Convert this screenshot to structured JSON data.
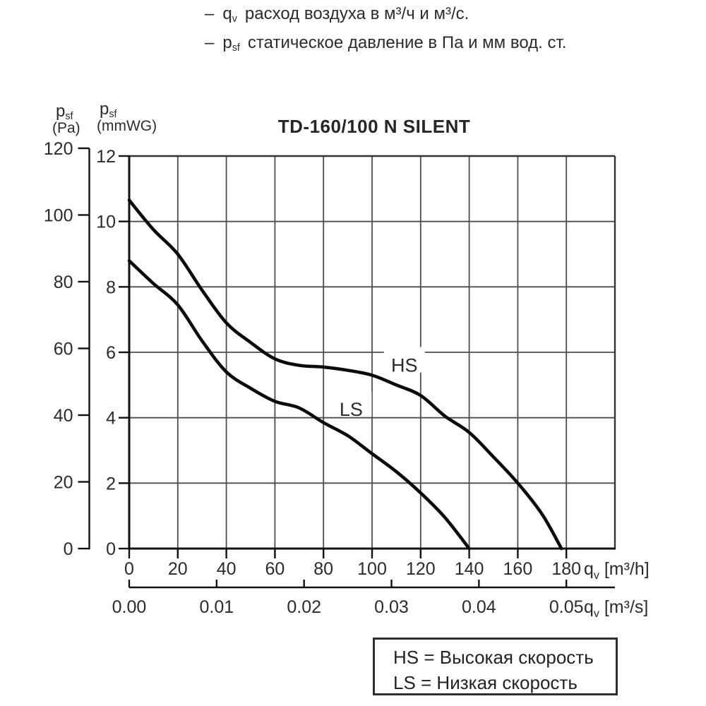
{
  "colors": {
    "background": "#ffffff",
    "text": "#2b2b2b",
    "curve": "#0b0b0b",
    "grid": "#4d4d4d",
    "border": "#333333",
    "axis": "#111111"
  },
  "bullets": [
    {
      "dash": "–",
      "sym": "q",
      "sub": "v",
      "text": "расход воздуха в м³/ч и м³/с."
    },
    {
      "dash": "–",
      "sym": "p",
      "sub": "sf",
      "text": "статическое давление в Па и мм вод. ст."
    }
  ],
  "axis_headers": {
    "pa_sym": "p",
    "pa_sub": "sf",
    "pa_unit": "(Pa)",
    "mmwg_sym": "p",
    "mmwg_sub": "sf",
    "mmwg_unit": "(mmWG)"
  },
  "chart_data": {
    "type": "line",
    "title": "TD-160/100 N SILENT",
    "grid": true,
    "x_axis_primary": {
      "unit_pre": "q",
      "unit_sub": "v",
      "unit_post": " [m³/h]",
      "ticks": [
        0,
        20,
        40,
        60,
        80,
        100,
        120,
        140,
        160,
        180
      ],
      "range": [
        0,
        200
      ]
    },
    "x_axis_secondary": {
      "unit_pre": "q",
      "unit_sub": "v",
      "unit_post": " [m³/s]",
      "ticks": [
        "0.00",
        "0.01",
        "0.02",
        "0.03",
        "0.04",
        "0.05"
      ],
      "range": [
        0,
        0.0556
      ]
    },
    "y_axis_primary": {
      "name": "psf (mmWG)",
      "ticks": [
        12,
        10,
        8,
        6,
        4,
        2,
        0
      ],
      "range": [
        0,
        12
      ]
    },
    "y_axis_secondary": {
      "name": "psf (Pa)",
      "ticks": [
        120,
        100,
        80,
        60,
        40,
        20,
        0
      ],
      "range": [
        0,
        120
      ]
    },
    "series": [
      {
        "name": "HS",
        "label_at": [
          113.3,
          5.6
        ],
        "points": [
          [
            0,
            10.65
          ],
          [
            10,
            9.75
          ],
          [
            20,
            9.0
          ],
          [
            30,
            7.9
          ],
          [
            40,
            6.9
          ],
          [
            50,
            6.3
          ],
          [
            60,
            5.8
          ],
          [
            70,
            5.6
          ],
          [
            80,
            5.55
          ],
          [
            90,
            5.45
          ],
          [
            100,
            5.3
          ],
          [
            110,
            5.0
          ],
          [
            120,
            4.68
          ],
          [
            130,
            4.05
          ],
          [
            140,
            3.55
          ],
          [
            150,
            2.8
          ],
          [
            160,
            2.0
          ],
          [
            170,
            1.05
          ],
          [
            178,
            0
          ]
        ]
      },
      {
        "name": "LS",
        "label_at": [
          91.4,
          4.25
        ],
        "points": [
          [
            0,
            8.8
          ],
          [
            10,
            8.1
          ],
          [
            20,
            7.45
          ],
          [
            30,
            6.35
          ],
          [
            40,
            5.4
          ],
          [
            50,
            4.9
          ],
          [
            60,
            4.5
          ],
          [
            70,
            4.3
          ],
          [
            80,
            3.85
          ],
          [
            90,
            3.45
          ],
          [
            100,
            2.9
          ],
          [
            110,
            2.35
          ],
          [
            120,
            1.7
          ],
          [
            130,
            0.95
          ],
          [
            140,
            0
          ]
        ]
      }
    ]
  },
  "legend": {
    "items": [
      "HS = Высокая скорость",
      "LS = Низкая скорость"
    ]
  }
}
